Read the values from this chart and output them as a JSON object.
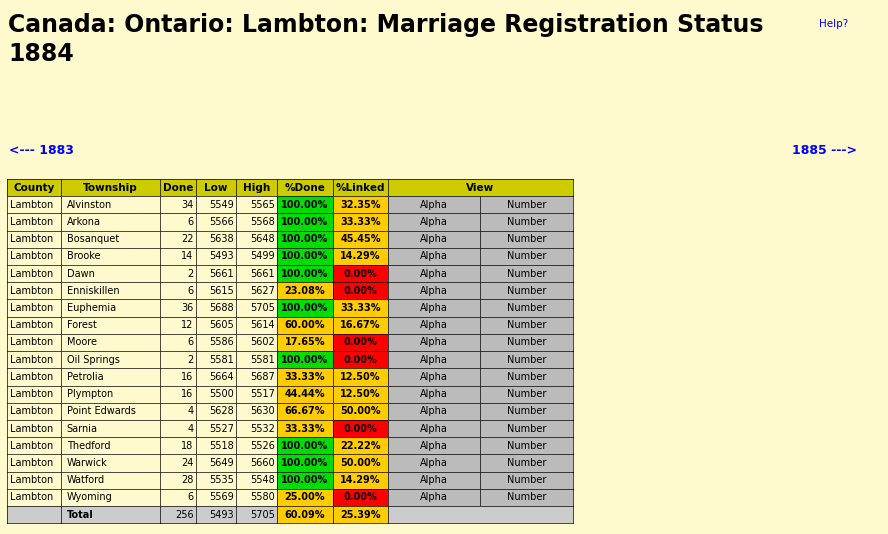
{
  "title_line1": "Canada: Ontario: Lambton: Marriage Registration Status",
  "title_line2": "1884",
  "bg_color": "#FFFACD",
  "border_color": "#006600",
  "border_color2": "#CC6600",
  "nav_left": "<--- 1883",
  "nav_right": "1885 --->",
  "help_text": "Help?",
  "col_headers": [
    "County",
    "Township",
    "Done",
    "Low",
    "High",
    "%Done",
    "%Linked",
    "View"
  ],
  "rows": [
    [
      "Lambton",
      "Alvinston",
      "34",
      "5549",
      "5565",
      "100.00%",
      "32.35%",
      "green",
      "yellow"
    ],
    [
      "Lambton",
      "Arkona",
      "6",
      "5566",
      "5568",
      "100.00%",
      "33.33%",
      "green",
      "yellow"
    ],
    [
      "Lambton",
      "Bosanquet",
      "22",
      "5638",
      "5648",
      "100.00%",
      "45.45%",
      "green",
      "yellow"
    ],
    [
      "Lambton",
      "Brooke",
      "14",
      "5493",
      "5499",
      "100.00%",
      "14.29%",
      "green",
      "yellow"
    ],
    [
      "Lambton",
      "Dawn",
      "2",
      "5661",
      "5661",
      "100.00%",
      "0.00%",
      "green",
      "red"
    ],
    [
      "Lambton",
      "Enniskillen",
      "6",
      "5615",
      "5627",
      "23.08%",
      "0.00%",
      "yellow",
      "red"
    ],
    [
      "Lambton",
      "Euphemia",
      "36",
      "5688",
      "5705",
      "100.00%",
      "33.33%",
      "green",
      "yellow"
    ],
    [
      "Lambton",
      "Forest",
      "12",
      "5605",
      "5614",
      "60.00%",
      "16.67%",
      "yellow",
      "yellow"
    ],
    [
      "Lambton",
      "Moore",
      "6",
      "5586",
      "5602",
      "17.65%",
      "0.00%",
      "yellow",
      "red"
    ],
    [
      "Lambton",
      "Oil Springs",
      "2",
      "5581",
      "5581",
      "100.00%",
      "0.00%",
      "green",
      "red"
    ],
    [
      "Lambton",
      "Petrolia",
      "16",
      "5664",
      "5687",
      "33.33%",
      "12.50%",
      "yellow",
      "yellow"
    ],
    [
      "Lambton",
      "Plympton",
      "16",
      "5500",
      "5517",
      "44.44%",
      "12.50%",
      "yellow",
      "yellow"
    ],
    [
      "Lambton",
      "Point Edwards",
      "4",
      "5628",
      "5630",
      "66.67%",
      "50.00%",
      "yellow",
      "yellow"
    ],
    [
      "Lambton",
      "Sarnia",
      "4",
      "5527",
      "5532",
      "33.33%",
      "0.00%",
      "yellow",
      "red"
    ],
    [
      "Lambton",
      "Thedford",
      "18",
      "5518",
      "5526",
      "100.00%",
      "22.22%",
      "green",
      "yellow"
    ],
    [
      "Lambton",
      "Warwick",
      "24",
      "5649",
      "5660",
      "100.00%",
      "50.00%",
      "green",
      "yellow"
    ],
    [
      "Lambton",
      "Watford",
      "28",
      "5535",
      "5548",
      "100.00%",
      "14.29%",
      "green",
      "yellow"
    ],
    [
      "Lambton",
      "Wyoming",
      "6",
      "5569",
      "5580",
      "25.00%",
      "0.00%",
      "yellow",
      "red"
    ]
  ],
  "total_row": [
    "",
    "Total",
    "256",
    "5493",
    "5705",
    "60.09%",
    "25.39%"
  ],
  "header_bg": "#CCCC00",
  "green_color": "#00DD00",
  "yellow_color": "#FFCC00",
  "red_color": "#FF0000",
  "view_bg": "#BBBBBB",
  "total_bg": "#CCCCCC",
  "row_bg": "#FFFACD"
}
